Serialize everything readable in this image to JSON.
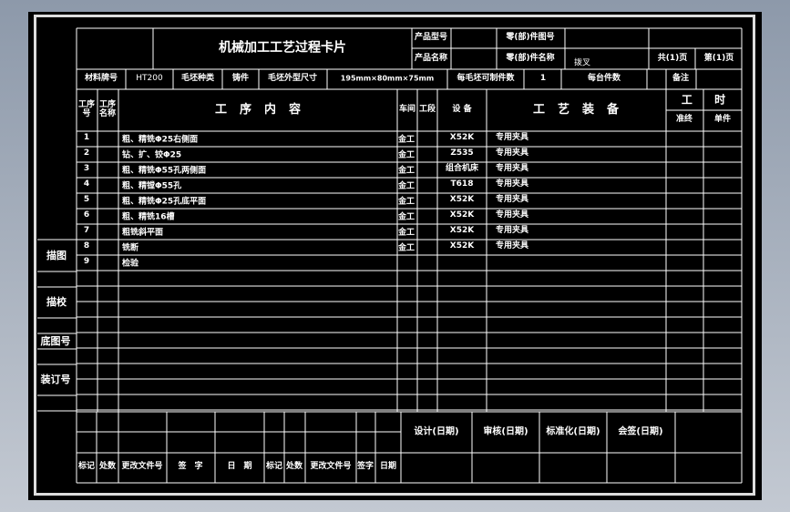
{
  "card": {
    "title": "机械加工工艺过程卡片",
    "product_model_label": "产品型号",
    "product_name_label": "产品名称",
    "part_no_label": "零(部)件图号",
    "part_name_label": "零(部)件名称",
    "part_name": "拨叉",
    "total_pages": "共(1)页",
    "page_no": "第(1)页"
  },
  "material_row": {
    "material_label": "材料牌号",
    "material": "HT200",
    "blank_type_label": "毛坯种类",
    "blank_type": "铸件",
    "blank_size_label": "毛坯外型尺寸",
    "blank_size": "195mm×80mm×75mm",
    "parts_per_blank_label": "每毛坯可制件数",
    "parts_per_blank": "1",
    "parts_per_unit_label": "每台件数",
    "remarks_label": "备注"
  },
  "header": {
    "op_no": "工序\n号",
    "op_name": "工序\n名称",
    "op_content": "工序内容",
    "workshop": "车间",
    "section": "工段",
    "equipment": "设 备",
    "tooling": "工艺装备",
    "time": "工 时",
    "prep_time": "准终",
    "unit_time": "单件"
  },
  "operations": [
    {
      "no": "1",
      "content": "粗、精铣Φ25右侧面",
      "workshop": "金工",
      "equipment": "X52K",
      "tooling": "专用夹具"
    },
    {
      "no": "2",
      "content": "钻、扩、铰Φ25",
      "workshop": "金工",
      "equipment": "Z535",
      "tooling": "专用夹具"
    },
    {
      "no": "3",
      "content": "粗、精铣Φ55孔两侧面",
      "workshop": "金工",
      "equipment": "组合机床",
      "tooling": "专用夹具"
    },
    {
      "no": "4",
      "content": "粗、精镗Φ55孔",
      "workshop": "金工",
      "equipment": "T618",
      "tooling": "专用夹具"
    },
    {
      "no": "5",
      "content": "粗、精铣Φ25孔底平面",
      "workshop": "金工",
      "equipment": "X52K",
      "tooling": "专用夹具"
    },
    {
      "no": "6",
      "content": "粗、精铣16槽",
      "workshop": "金工",
      "equipment": "X52K",
      "tooling": "专用夹具"
    },
    {
      "no": "7",
      "content": "粗铣斜平面",
      "workshop": "金工",
      "equipment": "X52K",
      "tooling": "专用夹具"
    },
    {
      "no": "8",
      "content": "铣断",
      "workshop": "金工",
      "equipment": "X52K",
      "tooling": "专用夹具"
    },
    {
      "no": "9",
      "content": "检验",
      "workshop": "",
      "equipment": "",
      "tooling": ""
    }
  ],
  "side_labels": {
    "tracing": "描图",
    "tracing_check": "描校",
    "base_drawing_no": "底图号",
    "binding_no": "装订号"
  },
  "signoff": {
    "design": "设计(日期)",
    "review": "审核(日期)",
    "standardize": "标准化(日期)",
    "countersign": "会签(日期)"
  },
  "revision": {
    "mark": "标记",
    "count": "处数",
    "change_doc": "更改文件号",
    "signature": "签　字",
    "date": "日　期",
    "mark2": "标记",
    "count2": "处数",
    "change_doc2": "更改文件号",
    "signature2": "签字",
    "date2": "日期"
  },
  "colors": {
    "background": "#000000",
    "lines": "#ffffff",
    "desktop": "#a4adba"
  }
}
